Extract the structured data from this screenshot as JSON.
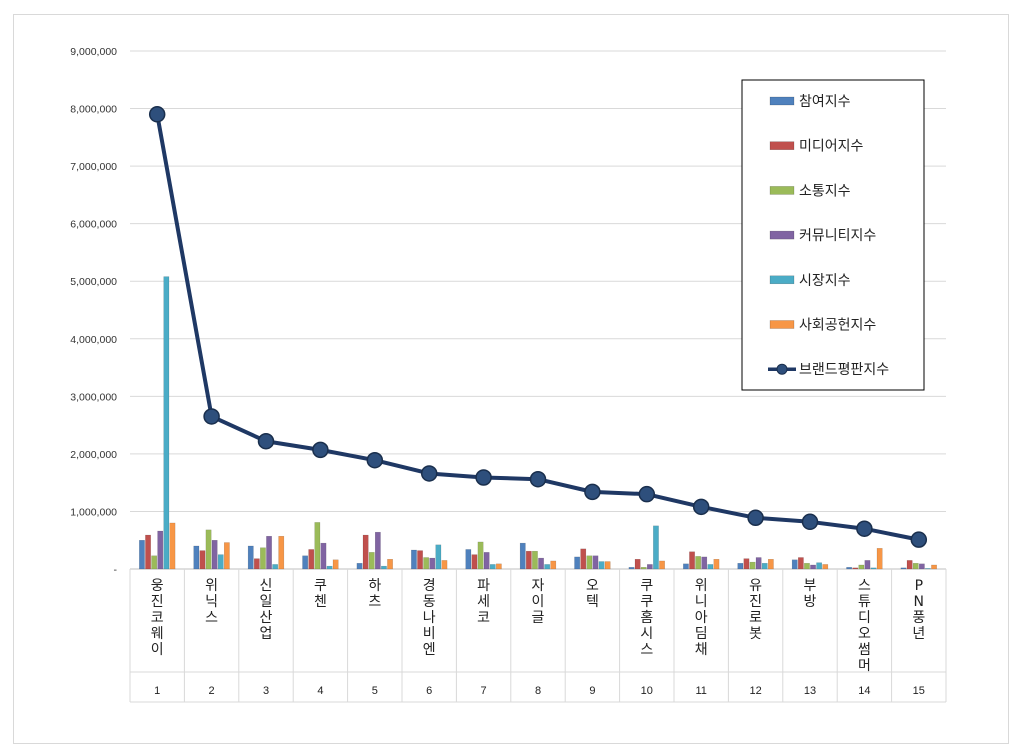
{
  "chart_data": {
    "type": "bar",
    "categories": [
      "웅진코웨이",
      "위닉스",
      "신일산업",
      "쿠첸",
      "하츠",
      "경동나비엔",
      "파세코",
      "자이글",
      "오텍",
      "쿠쿠홈시스",
      "위니아딤채",
      "유진로봇",
      "부방",
      "스튜디오썸머",
      "PN풍년"
    ],
    "ranks": [
      "1",
      "2",
      "3",
      "4",
      "5",
      "6",
      "7",
      "8",
      "9",
      "10",
      "11",
      "12",
      "13",
      "14",
      "15"
    ],
    "ylim": [
      0,
      9000000
    ],
    "yticks": [
      "-",
      "1,000,000",
      "2,000,000",
      "3,000,000",
      "4,000,000",
      "5,000,000",
      "6,000,000",
      "7,000,000",
      "8,000,000",
      "9,000,000"
    ],
    "grid": true,
    "legend_position": "top-right",
    "series": [
      {
        "name": "참여지수",
        "type": "bar",
        "color": "#4f81bd",
        "values": [
          500000,
          400000,
          400000,
          230000,
          100000,
          330000,
          340000,
          450000,
          210000,
          30000,
          90000,
          100000,
          160000,
          30000,
          20000
        ]
      },
      {
        "name": "미디어지수",
        "type": "bar",
        "color": "#c0504d",
        "values": [
          590000,
          320000,
          180000,
          340000,
          590000,
          320000,
          250000,
          310000,
          350000,
          170000,
          300000,
          180000,
          200000,
          20000,
          150000
        ]
      },
      {
        "name": "소통지수",
        "type": "bar",
        "color": "#9bbb59",
        "values": [
          230000,
          680000,
          370000,
          810000,
          290000,
          200000,
          470000,
          310000,
          230000,
          30000,
          220000,
          120000,
          100000,
          70000,
          100000
        ]
      },
      {
        "name": "커뮤니티지수",
        "type": "bar",
        "color": "#8064a2",
        "values": [
          660000,
          500000,
          570000,
          450000,
          640000,
          190000,
          290000,
          190000,
          230000,
          80000,
          210000,
          200000,
          70000,
          150000,
          90000
        ]
      },
      {
        "name": "시장지수",
        "type": "bar",
        "color": "#4bacc6",
        "values": [
          5080000,
          250000,
          80000,
          50000,
          50000,
          420000,
          80000,
          80000,
          130000,
          750000,
          80000,
          100000,
          110000,
          20000,
          10000
        ]
      },
      {
        "name": "사회공헌지수",
        "type": "bar",
        "color": "#f79646",
        "values": [
          800000,
          460000,
          570000,
          160000,
          170000,
          150000,
          90000,
          140000,
          130000,
          140000,
          170000,
          170000,
          80000,
          360000,
          70000
        ]
      },
      {
        "name": "브랜드평판지수",
        "type": "line",
        "color": "#1f3864",
        "values": [
          7900000,
          2650000,
          2220000,
          2070000,
          1890000,
          1660000,
          1590000,
          1560000,
          1340000,
          1300000,
          1080000,
          890000,
          820000,
          700000,
          510000
        ]
      }
    ]
  }
}
